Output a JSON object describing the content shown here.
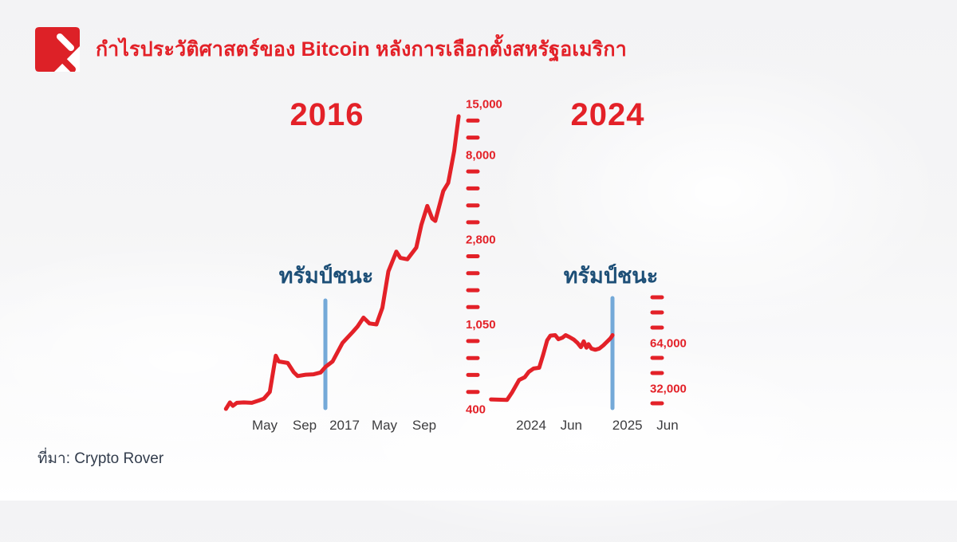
{
  "header": {
    "title_prefix": "กำไรประวัติศาสตร์ของ ",
    "title_highlight": "Bitcoin",
    "title_suffix": " หลังการเลือกตั้งสหรัฐอเมริกา"
  },
  "source": {
    "label": "ที่มา: Crypto Rover"
  },
  "colors": {
    "red": "#E32128",
    "logo_red": "#DD2127",
    "blue_line": "#74A9D8",
    "blue_text": "#1D4F77",
    "axis_text": "#3D3D3F",
    "source_text": "#333D4D",
    "background": "#F4F4F5"
  },
  "chart_data": [
    {
      "type": "line",
      "title": "2016",
      "x_unit": "months (0 = Jan 2016)",
      "y_unit": "BTC price, USD (log scale)",
      "y_axis_range": [
        400,
        15000
      ],
      "grid": false,
      "legend": false,
      "event": {
        "label": "ทรัมป์ชนะ",
        "month": 10.08
      },
      "x_ticks": [
        {
          "m": 4,
          "label": "May"
        },
        {
          "m": 8,
          "label": "Sep"
        },
        {
          "m": 12,
          "label": "2017"
        },
        {
          "m": 16,
          "label": "May"
        },
        {
          "m": 20,
          "label": "Sep"
        }
      ],
      "y_ticks": [
        "15,000",
        null,
        null,
        "8,000",
        null,
        null,
        null,
        null,
        "2,800",
        null,
        null,
        null,
        null,
        "1,050",
        null,
        null,
        null,
        null,
        "400"
      ],
      "series": [
        [
          0.1,
          400
        ],
        [
          0.5,
          432
        ],
        [
          0.8,
          415
        ],
        [
          1.2,
          430
        ],
        [
          1.9,
          432
        ],
        [
          2.7,
          430
        ],
        [
          3.4,
          442
        ],
        [
          3.9,
          452
        ],
        [
          4.5,
          490
        ],
        [
          5.1,
          755
        ],
        [
          5.4,
          705
        ],
        [
          6.3,
          692
        ],
        [
          6.9,
          620
        ],
        [
          7.3,
          592
        ],
        [
          8.1,
          602
        ],
        [
          8.9,
          605
        ],
        [
          9.6,
          618
        ],
        [
          10.1,
          662
        ],
        [
          10.8,
          705
        ],
        [
          11.8,
          880
        ],
        [
          12.8,
          1000
        ],
        [
          13.3,
          1070
        ],
        [
          13.9,
          1190
        ],
        [
          14.5,
          1110
        ],
        [
          15.2,
          1098
        ],
        [
          15.8,
          1340
        ],
        [
          16.4,
          2070
        ],
        [
          17.2,
          2620
        ],
        [
          17.6,
          2430
        ],
        [
          18.3,
          2390
        ],
        [
          19.2,
          2750
        ],
        [
          19.7,
          3600
        ],
        [
          20.3,
          4520
        ],
        [
          20.8,
          3890
        ],
        [
          21.1,
          3780
        ],
        [
          21.9,
          5400
        ],
        [
          22.4,
          5950
        ],
        [
          22.55,
          6550
        ],
        [
          23.0,
          8700
        ],
        [
          23.2,
          10500
        ],
        [
          23.45,
          13200
        ]
      ]
    },
    {
      "type": "line",
      "title": "2024",
      "x_unit": "months (0 = Jan 2024)",
      "y_unit": "BTC price, USD (log scale)",
      "y_axis_range": [
        26000,
        90000
      ],
      "grid": false,
      "legend": false,
      "event": {
        "label": "ทรัมป์ชนะ",
        "month": 10.14
      },
      "x_ticks": [
        {
          "m": 0,
          "label": "2024"
        },
        {
          "m": 5,
          "label": "Jun"
        },
        {
          "m": 12,
          "label": "2025"
        },
        {
          "m": 17,
          "label": "Jun"
        }
      ],
      "y_ticks": [
        null,
        null,
        null,
        "64,000",
        null,
        null,
        "32,000",
        null
      ],
      "series": [
        [
          -5.0,
          27200
        ],
        [
          -3.0,
          27000
        ],
        [
          -2.4,
          30000
        ],
        [
          -1.5,
          36000
        ],
        [
          -0.8,
          37500
        ],
        [
          -0.3,
          40500
        ],
        [
          0.3,
          42500
        ],
        [
          1.0,
          43000
        ],
        [
          1.5,
          52000
        ],
        [
          2.0,
          64000
        ],
        [
          2.4,
          68500
        ],
        [
          3.0,
          69000
        ],
        [
          3.4,
          65000
        ],
        [
          3.9,
          66500
        ],
        [
          4.3,
          69000
        ],
        [
          4.8,
          67000
        ],
        [
          5.3,
          64800
        ],
        [
          5.8,
          61500
        ],
        [
          6.2,
          58000
        ],
        [
          6.55,
          63000
        ],
        [
          6.9,
          57500
        ],
        [
          7.15,
          60500
        ],
        [
          7.5,
          56800
        ],
        [
          8.0,
          55800
        ],
        [
          8.5,
          56800
        ],
        [
          9.0,
          59500
        ],
        [
          9.5,
          63000
        ],
        [
          9.9,
          66000
        ],
        [
          10.15,
          69000
        ]
      ]
    }
  ]
}
